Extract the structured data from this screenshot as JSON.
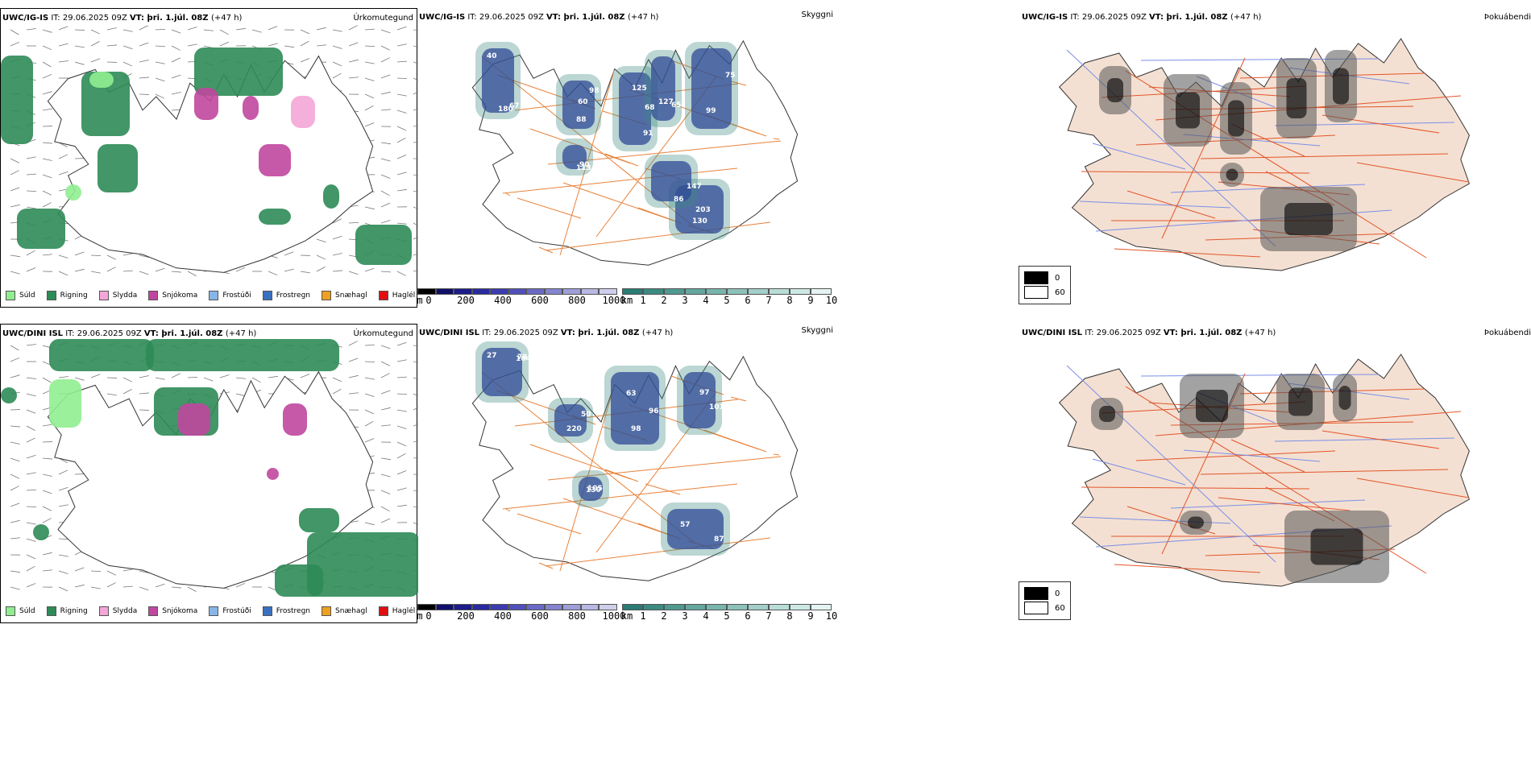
{
  "rows": [
    {
      "model": "UWC/IG-IS",
      "it_label": "IT:",
      "it_value": "29.06.2025 09Z",
      "vt_label": "VT:",
      "vt_value": "þri. 1.júl. 08Z",
      "lead": "(+47 h)",
      "precip_title": "Úrkomutegund",
      "cloud_title": "Skyggni",
      "fog_title": "Þokuábendi",
      "cloud_labels": [
        "40",
        "60",
        "68",
        "65",
        "99",
        "130",
        "147",
        "113",
        "180",
        "98",
        "125",
        "127",
        "75",
        "203",
        "86",
        "90",
        "67",
        "88",
        "91"
      ]
    },
    {
      "model": "UWC/DINI ISL",
      "it_label": "IT:",
      "it_value": "29.06.2025 09Z",
      "vt_label": "VT:",
      "vt_value": "þri. 1.júl. 08Z",
      "lead": "(+47 h)",
      "precip_title": "Úrkomutegund",
      "cloud_title": "Skyggni",
      "fog_title": "Þokuábendi",
      "cloud_labels": [
        "27",
        "63",
        "101",
        "220",
        "87",
        "105",
        "78",
        "96",
        "97",
        "50",
        "57",
        "130",
        "104",
        "98"
      ]
    }
  ],
  "precip_legend": [
    {
      "label": "Súld",
      "color": "#90ee90"
    },
    {
      "label": "Rigning",
      "color": "#2e8b57"
    },
    {
      "label": "Slydda",
      "color": "#f4a6d7"
    },
    {
      "label": "Snjókoma",
      "color": "#c0479f"
    },
    {
      "label": "Frostúði",
      "color": "#87b5e8"
    },
    {
      "label": "Frostregn",
      "color": "#3a70c0"
    },
    {
      "label": "Snæhagl",
      "color": "#f0a020"
    },
    {
      "label": "Haglél",
      "color": "#e01010"
    }
  ],
  "height_bar": {
    "unit": "m",
    "ticks": [
      "0",
      "200",
      "400",
      "600",
      "800",
      "1000"
    ],
    "colors": [
      "#000000",
      "#10106a",
      "#1c1c8a",
      "#2a2aa0",
      "#3c3cb0",
      "#5050bb",
      "#6a6ac5",
      "#8484cf",
      "#9e9ed9",
      "#b8b8e3",
      "#cfcfec"
    ]
  },
  "vis_bar": {
    "unit": "km",
    "ticks": [
      "1",
      "2",
      "3",
      "4",
      "5",
      "6",
      "7",
      "8",
      "9",
      "10"
    ],
    "colors": [
      "#2a7c74",
      "#3c8a82",
      "#4f9990",
      "#64a79f",
      "#78b5ad",
      "#8dc2bb",
      "#a2cfc9",
      "#b8ddd8",
      "#cde9e5",
      "#e4f4f2"
    ]
  },
  "fog_legend": [
    {
      "label": "0",
      "color": "#000000"
    },
    {
      "label": "60",
      "color": "#ffffff"
    }
  ]
}
